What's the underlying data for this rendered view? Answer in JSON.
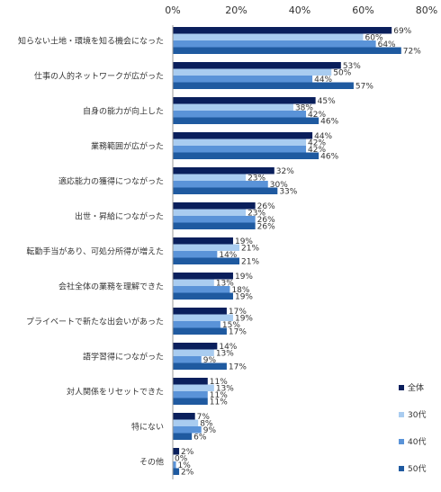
{
  "chart_data": {
    "type": "bar",
    "orientation": "horizontal",
    "xlim": [
      0,
      80
    ],
    "x_ticks": [
      "0%",
      "20%",
      "40%",
      "60%",
      "80%"
    ],
    "grid": false,
    "legend_position": "bottom-right",
    "categories": [
      "知らない土地・環境を知る機会になった",
      "仕事の人的ネットワークが広がった",
      "自身の能力が向上した",
      "業務範囲が広がった",
      "適応能力の獲得につながった",
      "出世・昇給につながった",
      "転勤手当があり、可処分所得が増えた",
      "会社全体の業務を理解できた",
      "プライベートで新たな出会いがあった",
      "語学習得につながった",
      "対人関係をリセットできた",
      "特にない",
      "その他"
    ],
    "series": [
      {
        "name": "全体",
        "color": "#0a1f5c",
        "values": [
          69,
          53,
          45,
          44,
          32,
          26,
          19,
          19,
          17,
          14,
          11,
          7,
          2
        ]
      },
      {
        "name": "30代",
        "color": "#a9ccf0",
        "values": [
          60,
          50,
          38,
          42,
          23,
          23,
          21,
          13,
          19,
          13,
          13,
          8,
          0
        ]
      },
      {
        "name": "40代",
        "color": "#5a93d8",
        "values": [
          64,
          44,
          42,
          42,
          30,
          26,
          14,
          18,
          15,
          9,
          11,
          9,
          1
        ]
      },
      {
        "name": "50代",
        "color": "#1f5aa0",
        "values": [
          72,
          57,
          46,
          46,
          33,
          26,
          21,
          19,
          17,
          17,
          11,
          6,
          2
        ]
      }
    ]
  }
}
